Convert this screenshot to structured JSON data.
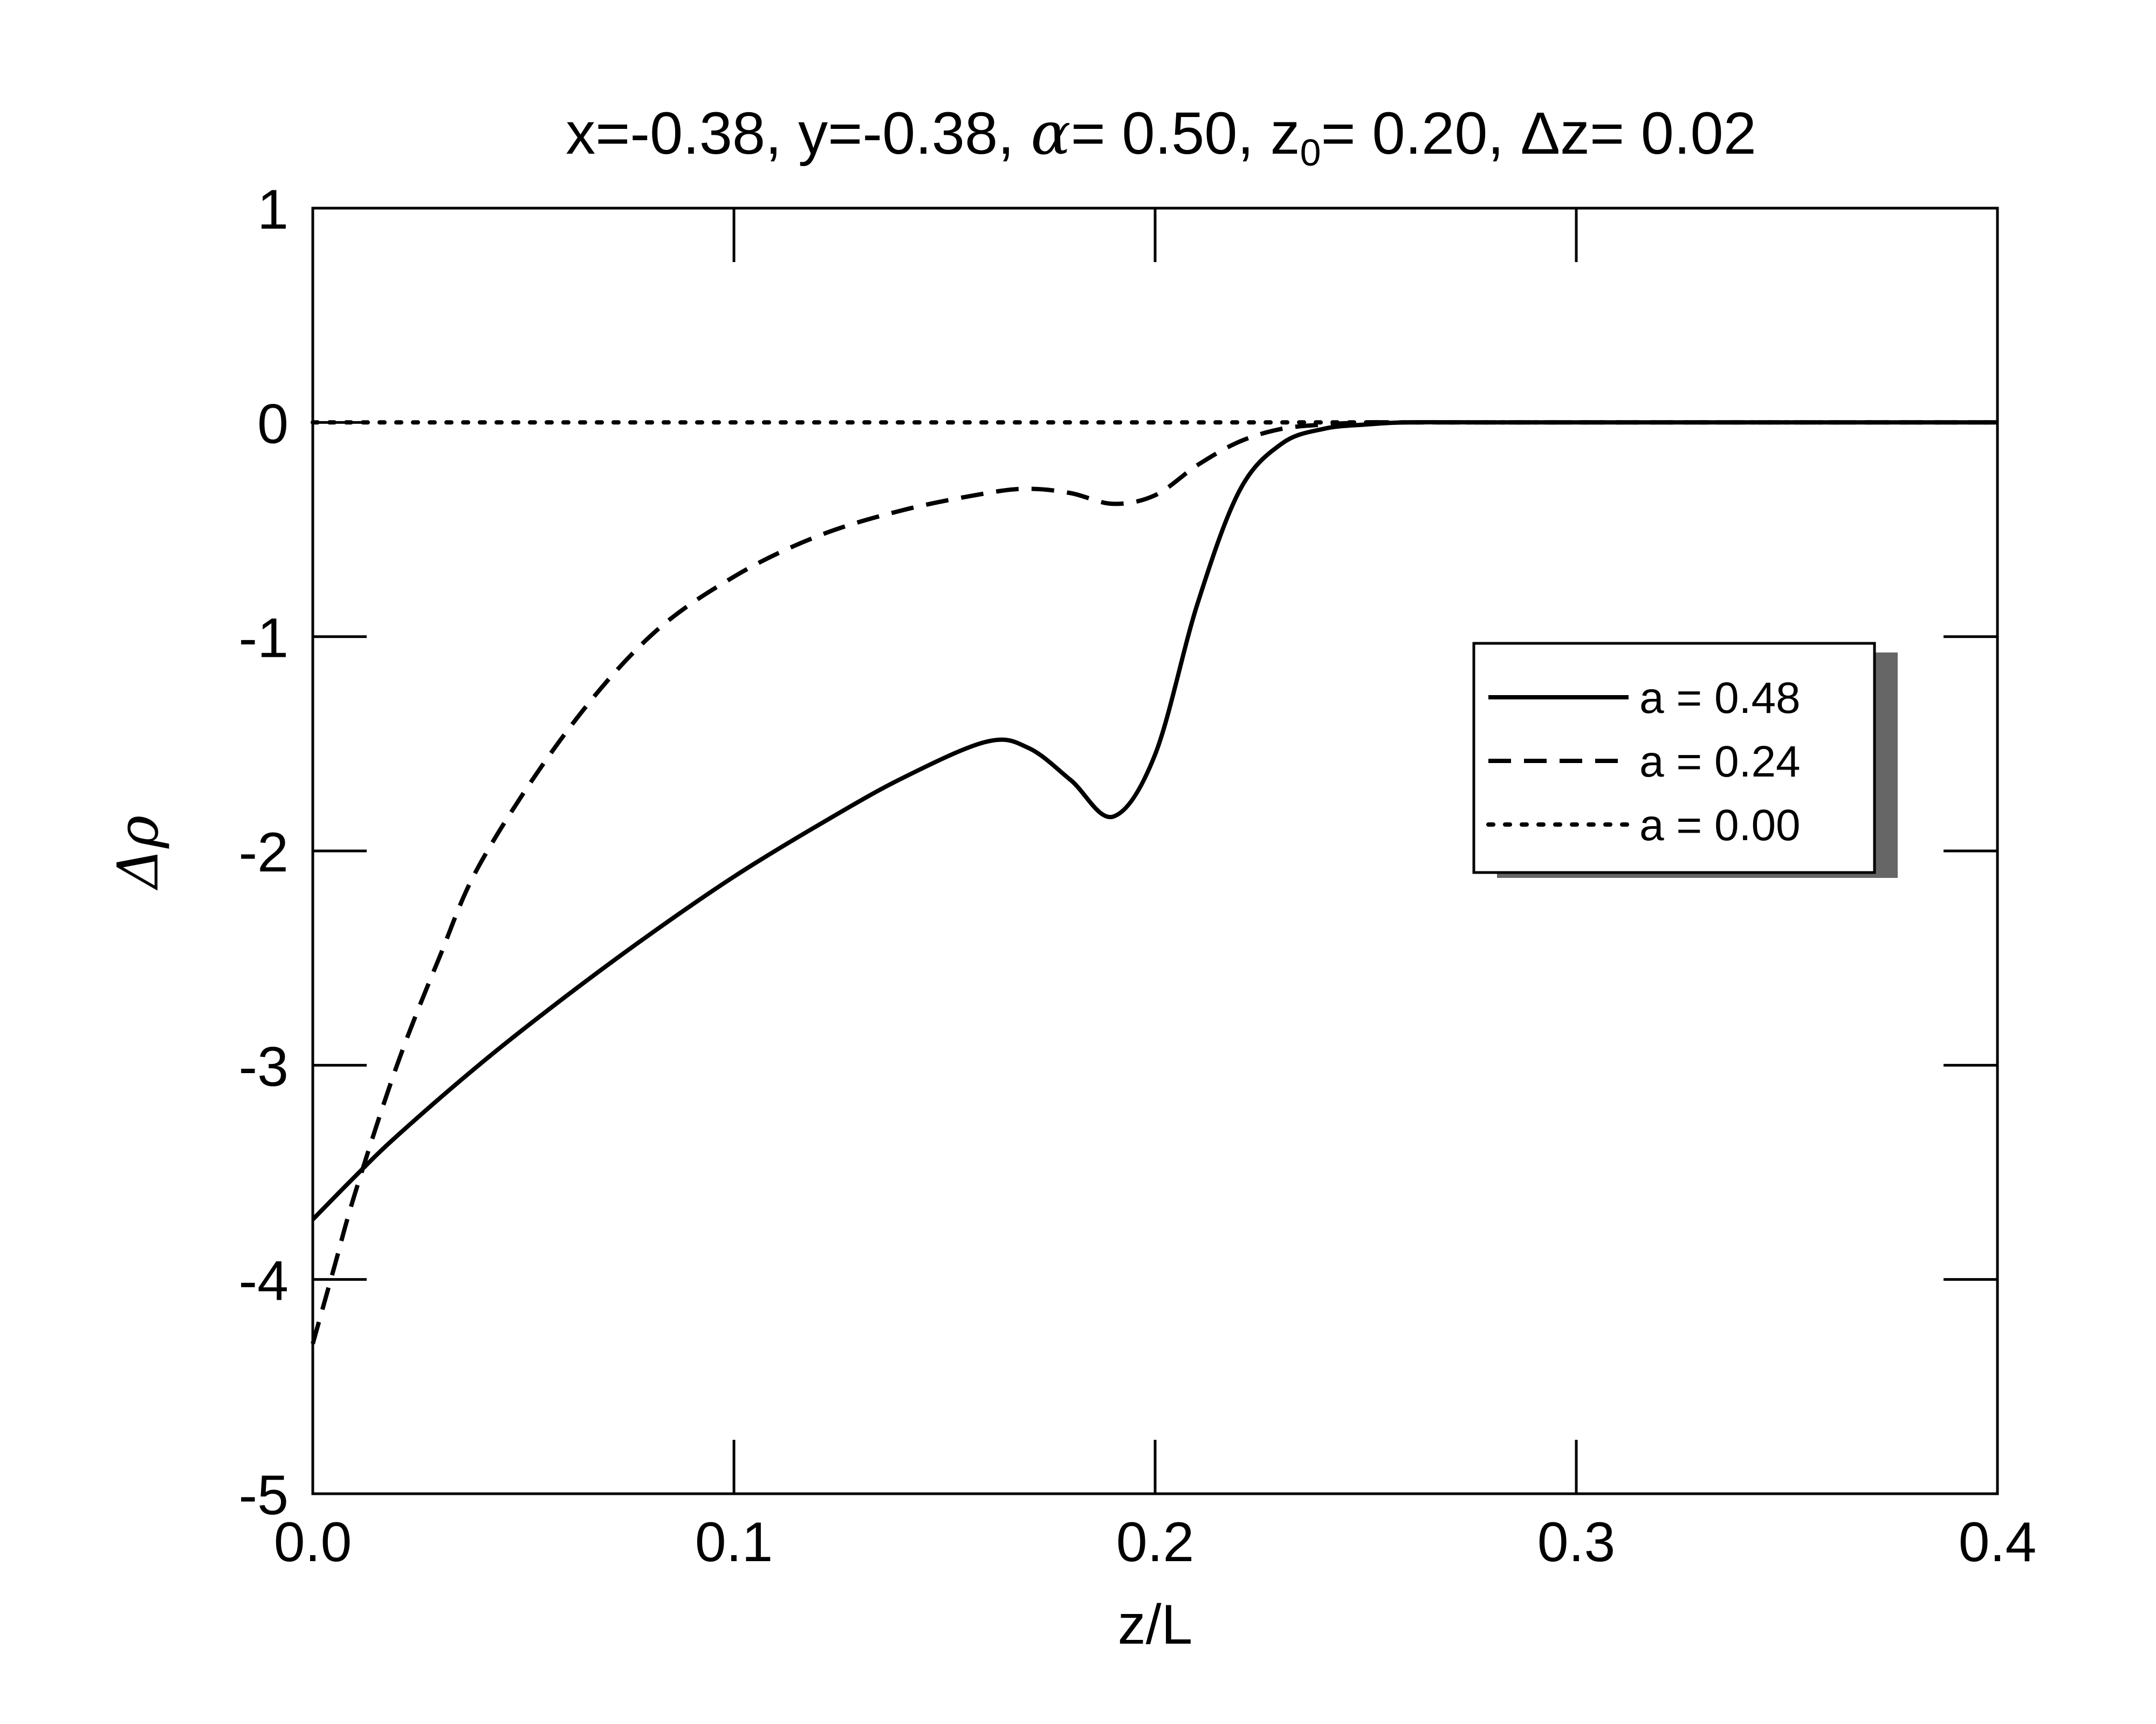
{
  "chart_data": {
    "type": "line",
    "title": {
      "x_part": "x=-0.38, y=-0.38, ",
      "alpha_symbol": "α",
      "alpha_part": "= 0.50, z",
      "z0_sub": "0",
      "z0_part": "= 0.20, Δz= 0.02"
    },
    "xlabel": "z/L",
    "ylabel": "Δρ",
    "xlim": [
      0.0,
      0.4
    ],
    "ylim": [
      -5,
      1
    ],
    "xticks": [
      0.0,
      0.1,
      0.2,
      0.3,
      0.4
    ],
    "xtick_labels": [
      "0.0",
      "0.1",
      "0.2",
      "0.3",
      "0.4"
    ],
    "yticks": [
      -5,
      -4,
      -3,
      -2,
      -1,
      0,
      1
    ],
    "ytick_labels": [
      "-5",
      "-4",
      "-3",
      "-2",
      "-1",
      "0",
      "1"
    ],
    "grid": false,
    "legend_position": "right-middle",
    "series": [
      {
        "name": "a =  0.48",
        "style": "solid",
        "x": [
          0.0,
          0.01,
          0.02,
          0.04,
          0.06,
          0.08,
          0.1,
          0.12,
          0.14,
          0.16,
          0.17,
          0.18,
          0.19,
          0.2,
          0.21,
          0.22,
          0.23,
          0.24,
          0.25,
          0.26,
          0.28,
          0.3,
          0.35,
          0.4
        ],
        "y": [
          -3.72,
          -3.52,
          -3.33,
          -2.99,
          -2.68,
          -2.39,
          -2.12,
          -1.88,
          -1.66,
          -1.49,
          -1.52,
          -1.67,
          -1.84,
          -1.55,
          -0.85,
          -0.32,
          -0.1,
          -0.03,
          -0.01,
          0.0,
          0.0,
          0.0,
          0.0,
          0.0
        ]
      },
      {
        "name": "a =  0.24",
        "style": "dashed",
        "x": [
          0.0,
          0.005,
          0.01,
          0.02,
          0.03,
          0.04,
          0.06,
          0.08,
          0.1,
          0.12,
          0.14,
          0.16,
          0.17,
          0.18,
          0.19,
          0.2,
          0.21,
          0.22,
          0.23,
          0.24,
          0.25,
          0.26,
          0.3,
          0.35,
          0.4
        ],
        "y": [
          -4.3,
          -3.95,
          -3.6,
          -3.0,
          -2.5,
          -2.05,
          -1.45,
          -1.0,
          -0.72,
          -0.53,
          -0.41,
          -0.33,
          -0.31,
          -0.33,
          -0.38,
          -0.34,
          -0.2,
          -0.09,
          -0.03,
          -0.01,
          0.0,
          0.0,
          0.0,
          0.0,
          0.0
        ]
      },
      {
        "name": "a =  0.00",
        "style": "dotted",
        "x": [
          0.0,
          0.4
        ],
        "y": [
          0.0,
          0.0
        ]
      }
    ]
  }
}
